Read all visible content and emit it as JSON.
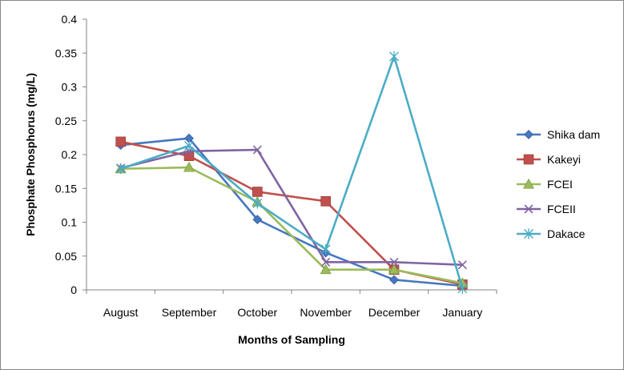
{
  "chart_data": {
    "type": "line",
    "title": "",
    "xlabel": "Months of Sampling",
    "ylabel": "Phosphate Phosphorus (mg/L)",
    "ylim": [
      0,
      0.4
    ],
    "ytick_step": 0.05,
    "yticks": [
      "0",
      "0.05",
      "0.1",
      "0.15",
      "0.2",
      "0.25",
      "0.3",
      "0.35",
      "0.4"
    ],
    "grid": false,
    "legend_position": "right",
    "categories": [
      "August",
      "September",
      "October",
      "November",
      "December",
      "January"
    ],
    "series": [
      {
        "name": "Shika dam",
        "color": "#4677BF",
        "marker": "diamond",
        "values": [
          0.214,
          0.224,
          0.104,
          0.055,
          0.015,
          0.006
        ]
      },
      {
        "name": "Kakeyi",
        "color": "#C0504D",
        "marker": "square",
        "values": [
          0.219,
          0.198,
          0.145,
          0.131,
          0.03,
          0.008
        ]
      },
      {
        "name": "FCEI",
        "color": "#9BBB59",
        "marker": "triangle",
        "values": [
          0.179,
          0.181,
          0.13,
          0.03,
          0.03,
          0.01
        ]
      },
      {
        "name": "FCEII",
        "color": "#8064A2",
        "marker": "x",
        "values": [
          0.18,
          0.205,
          0.207,
          0.041,
          0.041,
          0.037
        ]
      },
      {
        "name": "Dakace",
        "color": "#4BACC6",
        "marker": "star",
        "values": [
          0.179,
          0.213,
          0.128,
          0.06,
          0.345,
          0.002
        ]
      }
    ]
  }
}
